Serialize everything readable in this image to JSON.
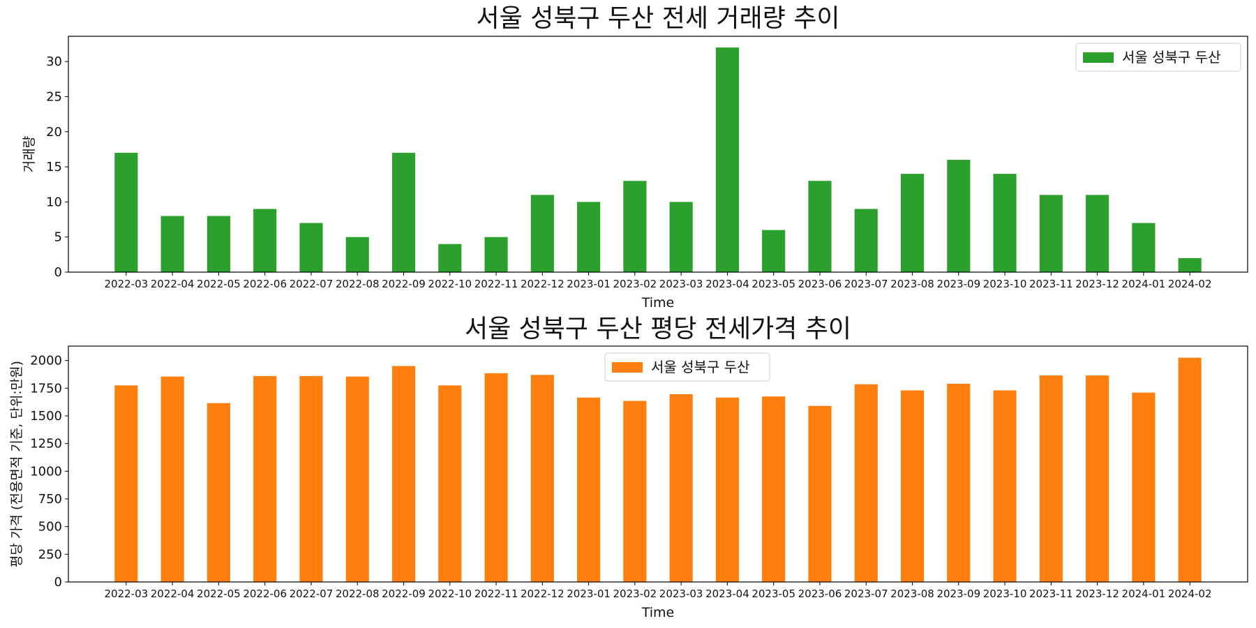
{
  "chart_data": [
    {
      "type": "bar",
      "title": "서울 성북구 두산 전세 거래량 추이",
      "xlabel": "Time",
      "ylabel": "거래량",
      "ylim": [
        0,
        33.6
      ],
      "yticks": [
        0,
        5,
        10,
        15,
        20,
        25,
        30
      ],
      "legend_position": "upper right",
      "grid": false,
      "categories": [
        "2022-03",
        "2022-04",
        "2022-05",
        "2022-06",
        "2022-07",
        "2022-08",
        "2022-09",
        "2022-10",
        "2022-11",
        "2022-12",
        "2023-01",
        "2023-02",
        "2023-03",
        "2023-04",
        "2023-05",
        "2023-06",
        "2023-07",
        "2023-08",
        "2023-09",
        "2023-10",
        "2023-11",
        "2023-12",
        "2024-01",
        "2024-02"
      ],
      "series": [
        {
          "name": "서울 성북구 두산",
          "color": "#2ca02c",
          "values": [
            17,
            8,
            8,
            9,
            7,
            5,
            17,
            4,
            5,
            11,
            10,
            13,
            10,
            32,
            6,
            13,
            9,
            14,
            16,
            14,
            11,
            11,
            7,
            2
          ]
        }
      ]
    },
    {
      "type": "bar",
      "title": "서울 성북구 두산 평당 전세가격 추이",
      "xlabel": "Time",
      "ylabel": "평당 가격 (전용면적 기준, 단위:만원)",
      "ylim": [
        0,
        2130
      ],
      "yticks": [
        0,
        250,
        500,
        750,
        1000,
        1250,
        1500,
        1750,
        2000
      ],
      "legend_position": "upper center",
      "grid": false,
      "categories": [
        "2022-03",
        "2022-04",
        "2022-05",
        "2022-06",
        "2022-07",
        "2022-08",
        "2022-09",
        "2022-10",
        "2022-11",
        "2022-12",
        "2023-01",
        "2023-02",
        "2023-03",
        "2023-04",
        "2023-05",
        "2023-06",
        "2023-07",
        "2023-08",
        "2023-09",
        "2023-10",
        "2023-11",
        "2023-12",
        "2024-01",
        "2024-02"
      ],
      "series": [
        {
          "name": "서울 성북구 두산",
          "color": "#ff7f0e",
          "values": [
            1775,
            1855,
            1615,
            1860,
            1860,
            1855,
            1950,
            1775,
            1885,
            1870,
            1665,
            1635,
            1695,
            1665,
            1675,
            1590,
            1785,
            1730,
            1790,
            1730,
            1865,
            1865,
            1710,
            2025
          ]
        }
      ]
    }
  ]
}
